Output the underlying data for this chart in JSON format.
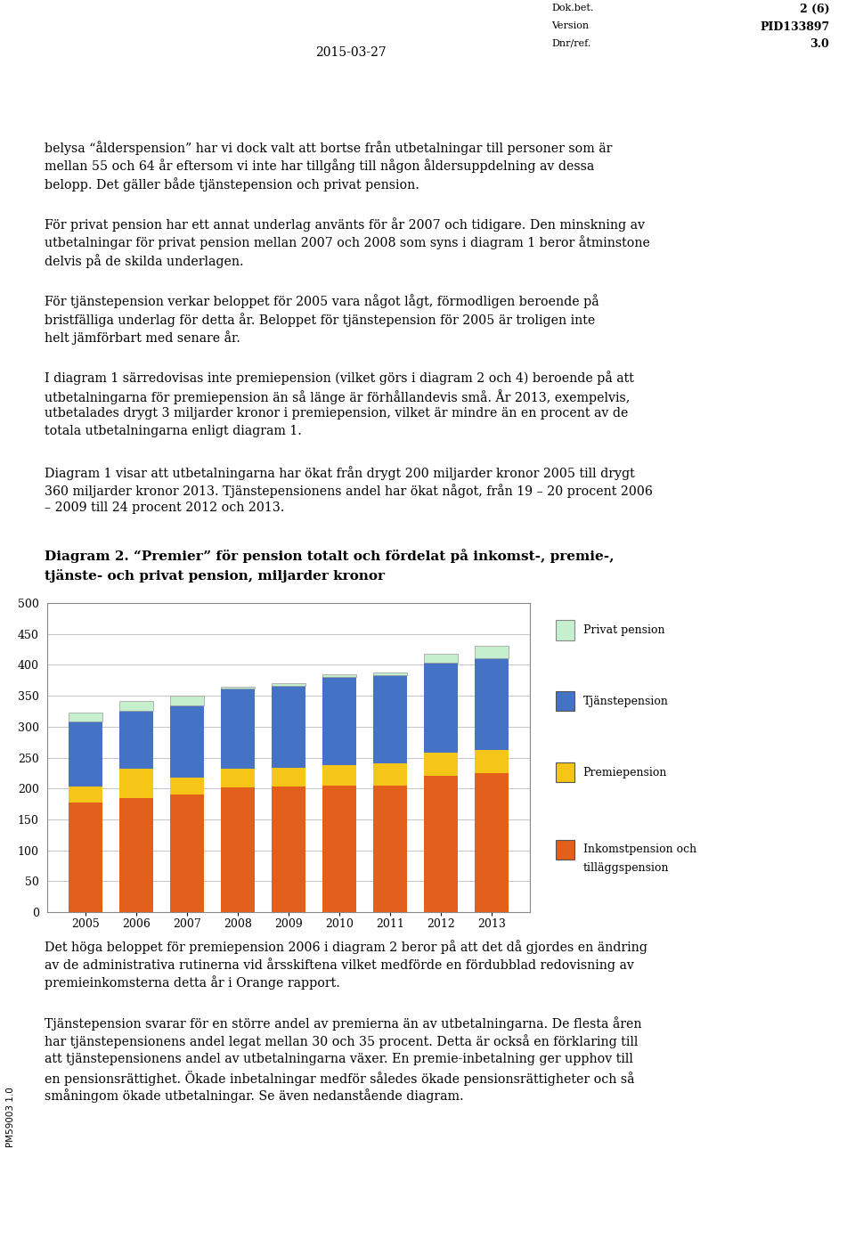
{
  "years": [
    2005,
    2006,
    2007,
    2008,
    2009,
    2010,
    2011,
    2012,
    2013
  ],
  "inkomst": [
    178,
    185,
    190,
    202,
    203,
    205,
    205,
    220,
    225
  ],
  "premiepension": [
    25,
    47,
    27,
    30,
    30,
    33,
    35,
    38,
    38
  ],
  "tjanstepension": [
    105,
    93,
    118,
    130,
    133,
    143,
    143,
    145,
    148
  ],
  "privat": [
    15,
    17,
    15,
    3,
    5,
    4,
    5,
    15,
    20
  ],
  "colors": {
    "inkomst": "#E2601C",
    "premiepension": "#F5C518",
    "tjanstepension": "#4472C4",
    "privat": "#C6EFCE"
  },
  "ylim": [
    0,
    500
  ],
  "yticks": [
    0,
    50,
    100,
    150,
    200,
    250,
    300,
    350,
    400,
    450,
    500
  ],
  "legend_labels": [
    "Privat pension",
    "Tjänstepension",
    "Premiepension",
    "Inkomstpension och\ntilläggspension"
  ],
  "header_date": "2015-03-27",
  "header_doc": "Dok.bet.",
  "header_pid": "PID133897",
  "header_version": "Version",
  "header_version_num": "3.0",
  "header_dnr": "Dnr/ref.",
  "header_page": "2 (6)",
  "margin_label": "PM59003 1.0",
  "title_diagram_line1": "Diagram 2. “Premier” för pension totalt och fördelat på inkomst-, premie-,",
  "title_diagram_line2": "tjänste- och privat pension, miljarder kronor",
  "body_text1": "belysa “ålderspension” har vi dock valt att bortse från utbetalningar till personer som är mellan 55 och 64 år eftersom vi inte har tillgång till någon åldersuppdelning av dessa belopp. Det gäller både tjänstepension och privat pension.",
  "body_text2": "För privat pension har ett annat underlag använts för år 2007 och tidigare. Den minskning av utbetalningar för privat pension mellan 2007 och 2008 som syns i diagram 1 beror åtminstone delvis på de skilda underlagen.",
  "body_text3": "För tjänstepension verkar beloppet för 2005 vara något lågt, förmodligen beroende på bristfälliga underlag för detta år. Beloppet för tjänstepension för 2005 är troligen inte helt jämförbart med senare år.",
  "body_text4": "I diagram 1 särredovisas inte premiepension (vilket görs i diagram 2 och 4) beroende på att utbetalningarna för premiepension än så länge är förhållandevis små. År 2013, exempelvis, utbetalades drygt 3 miljarder kronor i premiepension, vilket är mindre än en procent av de totala utbetalningarna enligt diagram 1.",
  "body_text5": "Diagram 1 visar att utbetalningarna har ökat från drygt 200 miljarder kronor 2005 till drygt 360 miljarder kronor 2013. Tjänstepensionens andel har ökat något, från 19 – 20 procent 2006 – 2009 till 24 procent 2012 och 2013.",
  "body_text6": "Det höga beloppet för premiepension 2006 i diagram 2 beror på att det då gjordes en ändring av de administrativa rutinerna vid årsskiftena vilket medförde en fördubblad redovisning av premieinkomsterna detta år i Orange rapport.",
  "body_text7": "Tjänstepension svarar för en större andel av premierna än av utbetalningarna. De flesta åren har tjänstepensionens andel legat mellan 30 och 35 procent. Detta är också en förklaring till att tjänstepensionens andel av utbetalningarna växer. En premie-inbetalning ger upphov till en pensionsrättighet. Ökade inbetalningar medför således ökade pensionsrättigheter och så småningom ökade utbetalningar. Se även nedanstående diagram."
}
